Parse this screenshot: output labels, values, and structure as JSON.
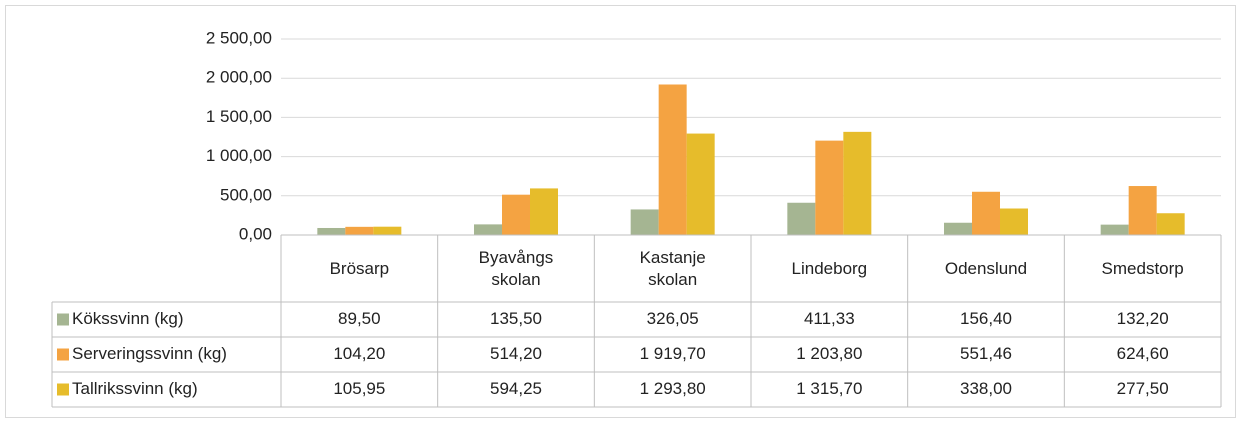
{
  "chart_data": {
    "type": "bar",
    "categories": [
      "Brösarp",
      "Byavångs skolan",
      "Kastanje skolan",
      "Lindeborg",
      "Odenslund",
      "Smedstorp"
    ],
    "series": [
      {
        "name": "Kökssvinn (kg)",
        "color": "#a5b592",
        "values": [
          89.5,
          135.5,
          326.05,
          411.33,
          156.4,
          132.2
        ],
        "value_labels": [
          "89,50",
          "135,50",
          "326,05",
          "411,33",
          "156,40",
          "132,20"
        ]
      },
      {
        "name": "Serveringssvinn (kg)",
        "color": "#f4a342",
        "values": [
          104.2,
          514.2,
          1919.7,
          1203.8,
          551.46,
          624.6
        ],
        "value_labels": [
          "104,20",
          "514,20",
          "1 919,70",
          "1 203,80",
          "551,46",
          "624,60"
        ]
      },
      {
        "name": "Tallrikssvinn (kg)",
        "color": "#e6bc2b",
        "values": [
          105.95,
          594.25,
          1293.8,
          1315.7,
          338,
          277.5
        ],
        "value_labels": [
          "105,95",
          "594,25",
          "1 293,80",
          "1 315,70",
          "338,00",
          "277,50"
        ]
      }
    ],
    "ylim": [
      0,
      2500
    ],
    "yticks": [
      {
        "value": 0,
        "label": "0,00"
      },
      {
        "value": 500,
        "label": "500,00"
      },
      {
        "value": 1000,
        "label": "1 000,00"
      },
      {
        "value": 1500,
        "label": "1 500,00"
      },
      {
        "value": 2000,
        "label": "2 000,00"
      },
      {
        "value": 2500,
        "label": "2 500,00"
      }
    ],
    "grid": true
  }
}
